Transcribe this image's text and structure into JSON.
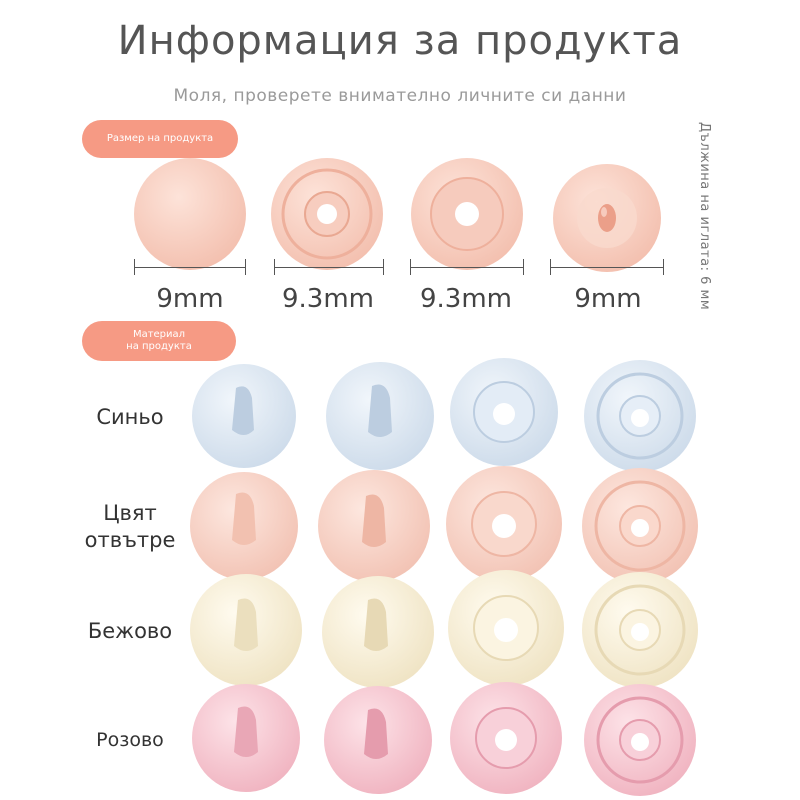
{
  "header": {
    "title": "Информация за продукта",
    "subtitle": "Моля, проверете внимателно личните си данни"
  },
  "size_section": {
    "pill": "Размер на продукта",
    "needle_length": "Дължина на иглата: 6 мм",
    "sizes": [
      "9mm",
      "9.3mm",
      "9.3mm",
      "9mm"
    ]
  },
  "material_section": {
    "pill_line1": "Материал",
    "pill_line2": "на продукта",
    "rows": [
      {
        "label": "Синьо",
        "color": "#dfe8f3"
      },
      {
        "label_line1": "Цвят",
        "label_line2": "отвътре",
        "color": "#f9d6cb"
      },
      {
        "label": "Бежово",
        "color": "#f7efd9"
      },
      {
        "label": "Розово",
        "color": "#f6c9d2"
      }
    ]
  },
  "colors": {
    "accent": "#f69a84",
    "top_pieces": "#f6c9bb"
  }
}
